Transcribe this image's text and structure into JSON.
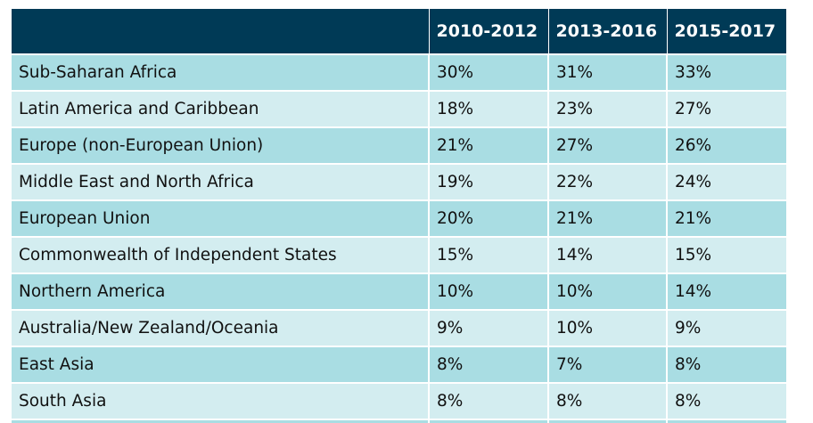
{
  "chart_data": {
    "type": "table",
    "columns": [
      "",
      "2010-2012",
      "2013-2016",
      "2015-2017"
    ],
    "rows": [
      {
        "region": "Sub-Saharan Africa",
        "values": [
          "30%",
          "31%",
          "33%"
        ]
      },
      {
        "region": "Latin America and Caribbean",
        "values": [
          "18%",
          "23%",
          "27%"
        ]
      },
      {
        "region": "Europe (non-European Union)",
        "values": [
          "21%",
          "27%",
          "26%"
        ]
      },
      {
        "region": "Middle East and North Africa",
        "values": [
          "19%",
          "22%",
          "24%"
        ]
      },
      {
        "region": "European Union",
        "values": [
          "20%",
          "21%",
          "21%"
        ]
      },
      {
        "region": "Commonwealth of Independent States",
        "values": [
          "15%",
          "14%",
          "15%"
        ]
      },
      {
        "region": "Northern America",
        "values": [
          "10%",
          "10%",
          "14%"
        ]
      },
      {
        "region": "Australia/New Zealand/Oceania",
        "values": [
          "9%",
          "10%",
          "9%"
        ]
      },
      {
        "region": "East Asia",
        "values": [
          "8%",
          "7%",
          "8%"
        ]
      },
      {
        "region": "South Asia",
        "values": [
          "8%",
          "8%",
          "8%"
        ]
      }
    ]
  },
  "colors": {
    "header_bg": "#003a56",
    "header_text": "#ffffff",
    "row_dark": "#a9dde3",
    "row_light": "#d3edf0"
  }
}
